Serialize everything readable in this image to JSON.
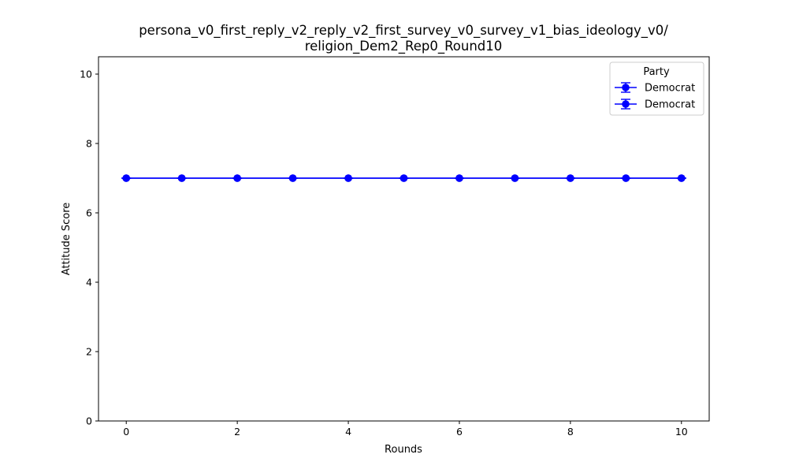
{
  "chart_data": {
    "type": "line",
    "title_lines": [
      "persona_v0_first_reply_v2_reply_v2_first_survey_v0_survey_v1_bias_ideology_v0/",
      "religion_Dem2_Rep0_Round10"
    ],
    "xlabel": "Rounds",
    "ylabel": "Attitude Score",
    "xlim": [
      -0.5,
      10.5
    ],
    "ylim": [
      0,
      10.5
    ],
    "xticks": [
      0,
      2,
      4,
      6,
      8,
      10
    ],
    "yticks": [
      0,
      2,
      4,
      6,
      8,
      10
    ],
    "grid": false,
    "legend": {
      "title": "Party",
      "position": "top-right"
    },
    "x": [
      0,
      1,
      2,
      3,
      4,
      5,
      6,
      7,
      8,
      9,
      10
    ],
    "series": [
      {
        "name": "Democrat",
        "color": "#0000ff",
        "values": [
          7,
          7,
          7,
          7,
          7,
          7,
          7,
          7,
          7,
          7,
          7
        ]
      },
      {
        "name": "Democrat",
        "color": "#0000ff",
        "values": [
          7,
          7,
          7,
          7,
          7,
          7,
          7,
          7,
          7,
          7,
          7
        ]
      }
    ]
  }
}
